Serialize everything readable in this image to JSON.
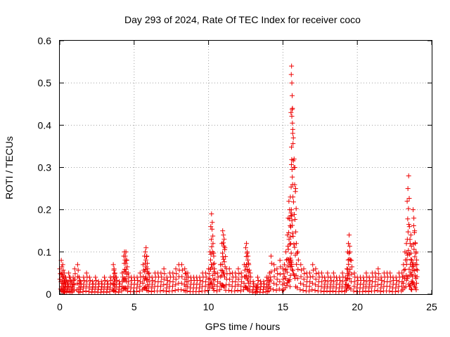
{
  "chart_data": {
    "type": "scatter",
    "title": "Day 293 of 2024, Rate Of TEC Index for receiver coco",
    "xlabel": "GPS time / hours",
    "ylabel": "ROTI / TECUs",
    "xlim": [
      0,
      25
    ],
    "ylim": [
      0,
      0.6
    ],
    "xticks": [
      "0",
      "5",
      "10",
      "15",
      "20",
      "25"
    ],
    "yticks": [
      "0",
      "0.1",
      "0.2",
      "0.3",
      "0.4",
      "0.5",
      "0.6"
    ],
    "grid": true,
    "marker": "+",
    "color": "#ee0000",
    "series": [
      {
        "name": "ROTI",
        "x": [
          0.0,
          0.1,
          0.15,
          0.2,
          0.25,
          0.3,
          0.35,
          0.4,
          0.5,
          0.6,
          0.7,
          0.8,
          0.9,
          1.0,
          1.2,
          1.3,
          1.4,
          1.6,
          1.8,
          2.0,
          2.2,
          2.4,
          2.6,
          2.8,
          3.0,
          3.2,
          3.4,
          3.6,
          3.65,
          3.7,
          3.8,
          4.0,
          4.2,
          4.3,
          4.35,
          4.4,
          4.45,
          4.5,
          4.6,
          4.8,
          5.0,
          5.2,
          5.4,
          5.6,
          5.7,
          5.75,
          5.8,
          5.85,
          5.9,
          6.0,
          6.2,
          6.4,
          6.6,
          6.8,
          7.0,
          7.2,
          7.4,
          7.6,
          7.8,
          8.0,
          8.2,
          8.4,
          8.5,
          8.6,
          8.8,
          9.0,
          9.2,
          9.4,
          9.6,
          9.8,
          10.0,
          10.1,
          10.15,
          10.2,
          10.25,
          10.3,
          10.35,
          10.4,
          10.6,
          10.8,
          10.9,
          10.95,
          11.0,
          11.05,
          11.1,
          11.2,
          11.4,
          11.6,
          11.8,
          12.0,
          12.2,
          12.4,
          12.5,
          12.55,
          12.6,
          12.65,
          12.7,
          12.8,
          13.0,
          13.2,
          13.3,
          13.5,
          13.7,
          13.9,
          14.0,
          14.1,
          14.2,
          14.4,
          14.6,
          14.8,
          15.0,
          15.1,
          15.2,
          15.3,
          15.35,
          15.4,
          15.45,
          15.5,
          15.52,
          15.54,
          15.56,
          15.58,
          15.6,
          15.62,
          15.64,
          15.66,
          15.7,
          15.75,
          15.8,
          15.85,
          15.9,
          16.0,
          16.2,
          16.4,
          16.6,
          16.8,
          17.0,
          17.2,
          17.4,
          17.6,
          17.8,
          18.0,
          18.2,
          18.4,
          18.6,
          18.8,
          19.0,
          19.2,
          19.3,
          19.35,
          19.4,
          19.45,
          19.5,
          19.6,
          19.8,
          20.0,
          20.2,
          20.4,
          20.6,
          20.8,
          21.0,
          21.2,
          21.4,
          21.6,
          21.8,
          22.0,
          22.2,
          22.4,
          22.6,
          22.8,
          23.0,
          23.1,
          23.2,
          23.3,
          23.35,
          23.4,
          23.45,
          23.5,
          23.55,
          23.6,
          23.65,
          23.7,
          23.75,
          23.8,
          23.85,
          23.9,
          23.95,
          24.0
        ],
        "y": [
          0.06,
          0.08,
          0.05,
          0.07,
          0.04,
          0.05,
          0.03,
          0.04,
          0.03,
          0.05,
          0.04,
          0.03,
          0.04,
          0.06,
          0.07,
          0.04,
          0.03,
          0.04,
          0.05,
          0.04,
          0.03,
          0.04,
          0.03,
          0.03,
          0.04,
          0.03,
          0.04,
          0.07,
          0.06,
          0.05,
          0.04,
          0.03,
          0.05,
          0.09,
          0.1,
          0.09,
          0.1,
          0.08,
          0.05,
          0.04,
          0.04,
          0.04,
          0.05,
          0.07,
          0.09,
          0.1,
          0.11,
          0.09,
          0.06,
          0.05,
          0.04,
          0.05,
          0.05,
          0.05,
          0.06,
          0.04,
          0.05,
          0.05,
          0.06,
          0.07,
          0.07,
          0.06,
          0.05,
          0.05,
          0.04,
          0.04,
          0.04,
          0.04,
          0.05,
          0.05,
          0.06,
          0.1,
          0.16,
          0.19,
          0.17,
          0.12,
          0.09,
          0.06,
          0.05,
          0.07,
          0.12,
          0.15,
          0.14,
          0.13,
          0.11,
          0.06,
          0.06,
          0.05,
          0.05,
          0.06,
          0.05,
          0.07,
          0.11,
          0.12,
          0.1,
          0.09,
          0.07,
          0.05,
          0.03,
          0.02,
          0.04,
          0.03,
          0.03,
          0.04,
          0.04,
          0.05,
          0.09,
          0.07,
          0.06,
          0.08,
          0.06,
          0.07,
          0.1,
          0.14,
          0.18,
          0.22,
          0.2,
          0.23,
          0.12,
          0.43,
          0.52,
          0.54,
          0.5,
          0.47,
          0.44,
          0.39,
          0.37,
          0.32,
          0.3,
          0.25,
          0.12,
          0.1,
          0.07,
          0.06,
          0.05,
          0.05,
          0.07,
          0.06,
          0.05,
          0.05,
          0.04,
          0.05,
          0.04,
          0.05,
          0.04,
          0.04,
          0.05,
          0.04,
          0.06,
          0.1,
          0.12,
          0.14,
          0.1,
          0.08,
          0.05,
          0.04,
          0.04,
          0.04,
          0.05,
          0.04,
          0.05,
          0.05,
          0.06,
          0.04,
          0.05,
          0.05,
          0.05,
          0.04,
          0.04,
          0.05,
          0.05,
          0.07,
          0.1,
          0.12,
          0.22,
          0.25,
          0.28,
          0.16,
          0.12,
          0.14,
          0.08,
          0.07,
          0.2,
          0.18,
          0.15,
          0.12,
          0.1,
          0.07
        ]
      }
    ]
  }
}
